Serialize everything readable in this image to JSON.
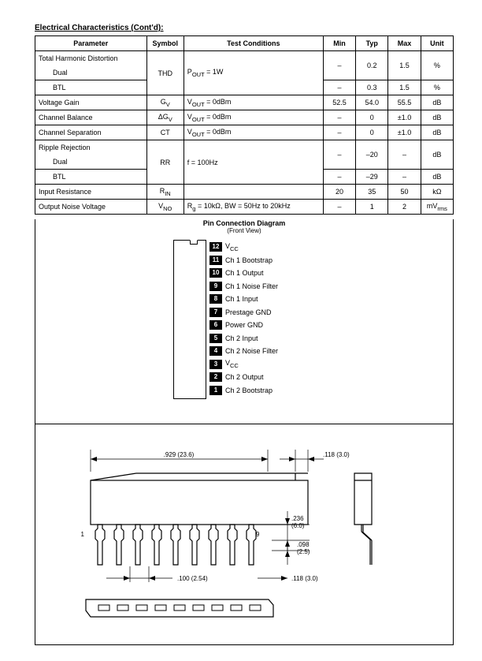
{
  "section_title": "Electrical Characteristics (Cont'd):",
  "table": {
    "headers": {
      "parameter": "Parameter",
      "symbol": "Symbol",
      "conditions": "Test Conditions",
      "min": "Min",
      "typ": "Typ",
      "max": "Max",
      "unit": "Unit"
    },
    "rows": [
      {
        "param": "Total Harmonic Distortion",
        "sym": "",
        "cond": "",
        "min": "",
        "typ": "",
        "max": "",
        "unit": "",
        "bb": "n"
      },
      {
        "param": "Dual",
        "indent": true,
        "sym": "THD",
        "symspan": 1,
        "cond": "P<sub>OUT</sub> = 1W",
        "min": "–",
        "typ": "0.2",
        "max": "1.5",
        "unit": "%"
      },
      {
        "param": "BTL",
        "indent": true,
        "sym": "",
        "cond": "",
        "min": "–",
        "typ": "0.3",
        "max": "1.5",
        "unit": "%"
      },
      {
        "param": "Voltage Gain",
        "sym": "G<sub>V</sub>",
        "cond": "V<sub>OUT</sub> = 0dBm",
        "min": "52.5",
        "typ": "54.0",
        "max": "55.5",
        "unit": "dB"
      },
      {
        "param": "Channel Balance",
        "sym": "ΔG<sub>V</sub>",
        "cond": "V<sub>OUT</sub> = 0dBm",
        "min": "–",
        "typ": "0",
        "max": "±1.0",
        "unit": "dB"
      },
      {
        "param": "Channel Separation",
        "sym": "CT",
        "cond": "V<sub>OUT</sub> = 0dBm",
        "min": "–",
        "typ": "0",
        "max": "±1.0",
        "unit": "dB"
      },
      {
        "param": "Ripple Rejection",
        "sym": "",
        "cond": "",
        "min": "",
        "typ": "",
        "max": "",
        "unit": "",
        "bb": "n"
      },
      {
        "param": "Dual",
        "indent": true,
        "sym": "RR",
        "cond": "f = 100Hz",
        "min": "–",
        "typ": "–20",
        "max": "–",
        "unit": "dB"
      },
      {
        "param": "BTL",
        "indent": true,
        "sym": "",
        "cond": "",
        "min": "–",
        "typ": "–29",
        "max": "–",
        "unit": "dB"
      },
      {
        "param": "Input Resistance",
        "sym": "R<sub>IN</sub>",
        "cond": "",
        "min": "20",
        "typ": "35",
        "max": "50",
        "unit": "kΩ"
      },
      {
        "param": "Output Noise Voltage",
        "sym": "V<sub>NO</sub>",
        "cond": "R<sub>g</sub> = 10kΩ, BW = 50Hz to 20kHz",
        "min": "–",
        "typ": "1",
        "max": "2",
        "unit": "mV<sub>rms</sub>"
      }
    ]
  },
  "pin": {
    "title": "Pin Connection Diagram",
    "subtitle": "(Front View)",
    "items": [
      {
        "num": "12",
        "label": "V<sub>CC</sub>"
      },
      {
        "num": "11",
        "label": "Ch 1 Bootstrap"
      },
      {
        "num": "10",
        "label": "Ch 1 Output"
      },
      {
        "num": "9",
        "label": "Ch 1 Noise Filter"
      },
      {
        "num": "8",
        "label": "Ch 1 Input"
      },
      {
        "num": "7",
        "label": "Prestage GND"
      },
      {
        "num": "6",
        "label": "Power GND"
      },
      {
        "num": "5",
        "label": "Ch 2 Input"
      },
      {
        "num": "4",
        "label": "Ch 2 Noise Filter"
      },
      {
        "num": "3",
        "label": "V<sub>CC</sub>"
      },
      {
        "num": "2",
        "label": "Ch 2 Output"
      },
      {
        "num": "1",
        "label": "Ch 2 Bootstrap"
      }
    ]
  },
  "drawing": {
    "dim_length": ".929 (23.6)",
    "dim_topwidth": ".118 (3.0)",
    "dim_h1": ".236",
    "dim_h1b": "(6.0)",
    "dim_h2": ".098",
    "dim_h2b": "(2.5)",
    "dim_pitch": ".100 (2.54)",
    "dim_sidew": ".118 (3.0)",
    "pin1": "1",
    "pin9": "9"
  },
  "styling": {
    "body_width": 612,
    "body_height": 792,
    "background": "#ffffff",
    "text_color": "#000000",
    "table_border_color": "#000000",
    "pin_num_bg": "#000000",
    "pin_num_fg": "#ffffff"
  }
}
